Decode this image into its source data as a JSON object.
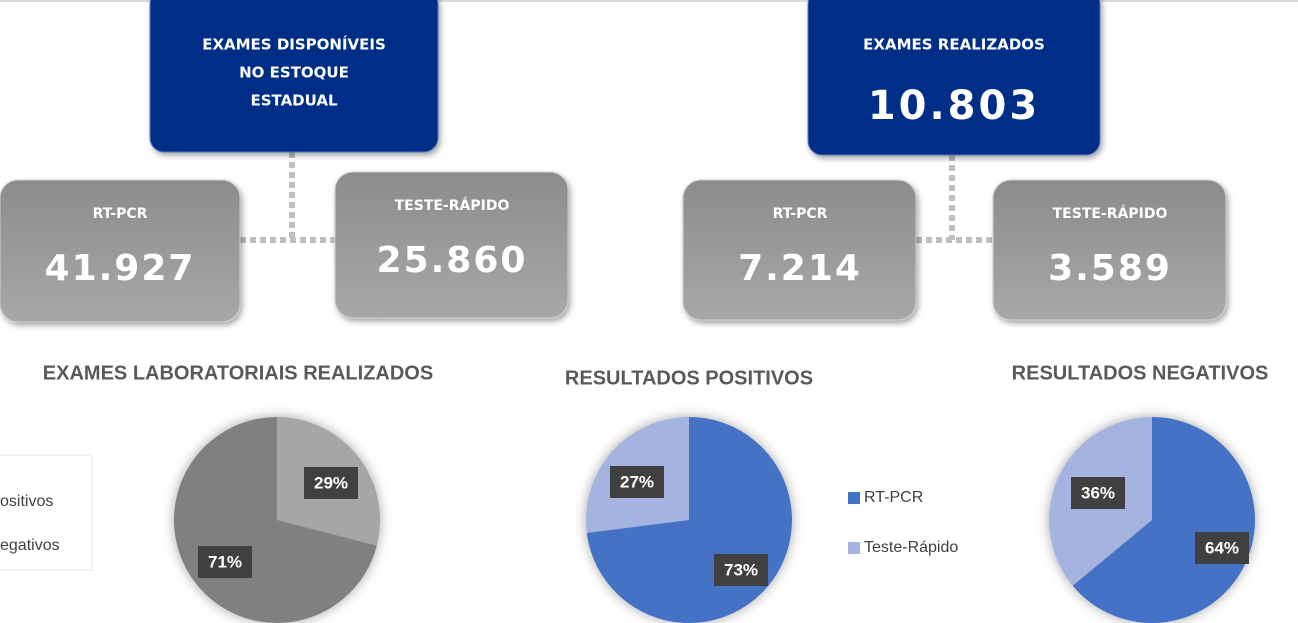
{
  "left_panel": {
    "title_lines": [
      "EXAMES DISPONÍVEIS",
      "NO ESTOQUE",
      "ESTADUAL"
    ],
    "boxes": [
      {
        "label": "RT-PCR",
        "value": "41.927"
      },
      {
        "label": "TESTE-RÁPIDO",
        "value": "25.860"
      }
    ]
  },
  "right_panel": {
    "title": "EXAMES REALIZADOS",
    "total": "10.803",
    "boxes": [
      {
        "label": "RT-PCR",
        "value": "7.214"
      },
      {
        "label": "TESTE-RÁPIDO",
        "value": "3.589"
      }
    ]
  },
  "chart_data": [
    {
      "type": "pie",
      "title": "EXAMES LABORATORIAIS REALIZADOS",
      "categories": [
        "ositivos",
        "egativos"
      ],
      "values": [
        29,
        71
      ],
      "value_labels": [
        "29%",
        "71%"
      ],
      "colors": [
        "#a6a6a6",
        "#808080"
      ]
    },
    {
      "type": "pie",
      "title": "RESULTADOS POSITIVOS",
      "categories": [
        "RT-PCR",
        "Teste-Rápido"
      ],
      "values": [
        73,
        27
      ],
      "value_labels": [
        "73%",
        "27%"
      ],
      "colors": [
        "#4472c4",
        "#a4b3df"
      ]
    },
    {
      "type": "pie",
      "title": "RESULTADOS NEGATIVOS",
      "categories": [
        "RT-PCR",
        "Teste-Rápido"
      ],
      "values": [
        64,
        36
      ],
      "value_labels": [
        "64%",
        "36%"
      ],
      "colors": [
        "#4472c4",
        "#a4b3df"
      ]
    }
  ]
}
